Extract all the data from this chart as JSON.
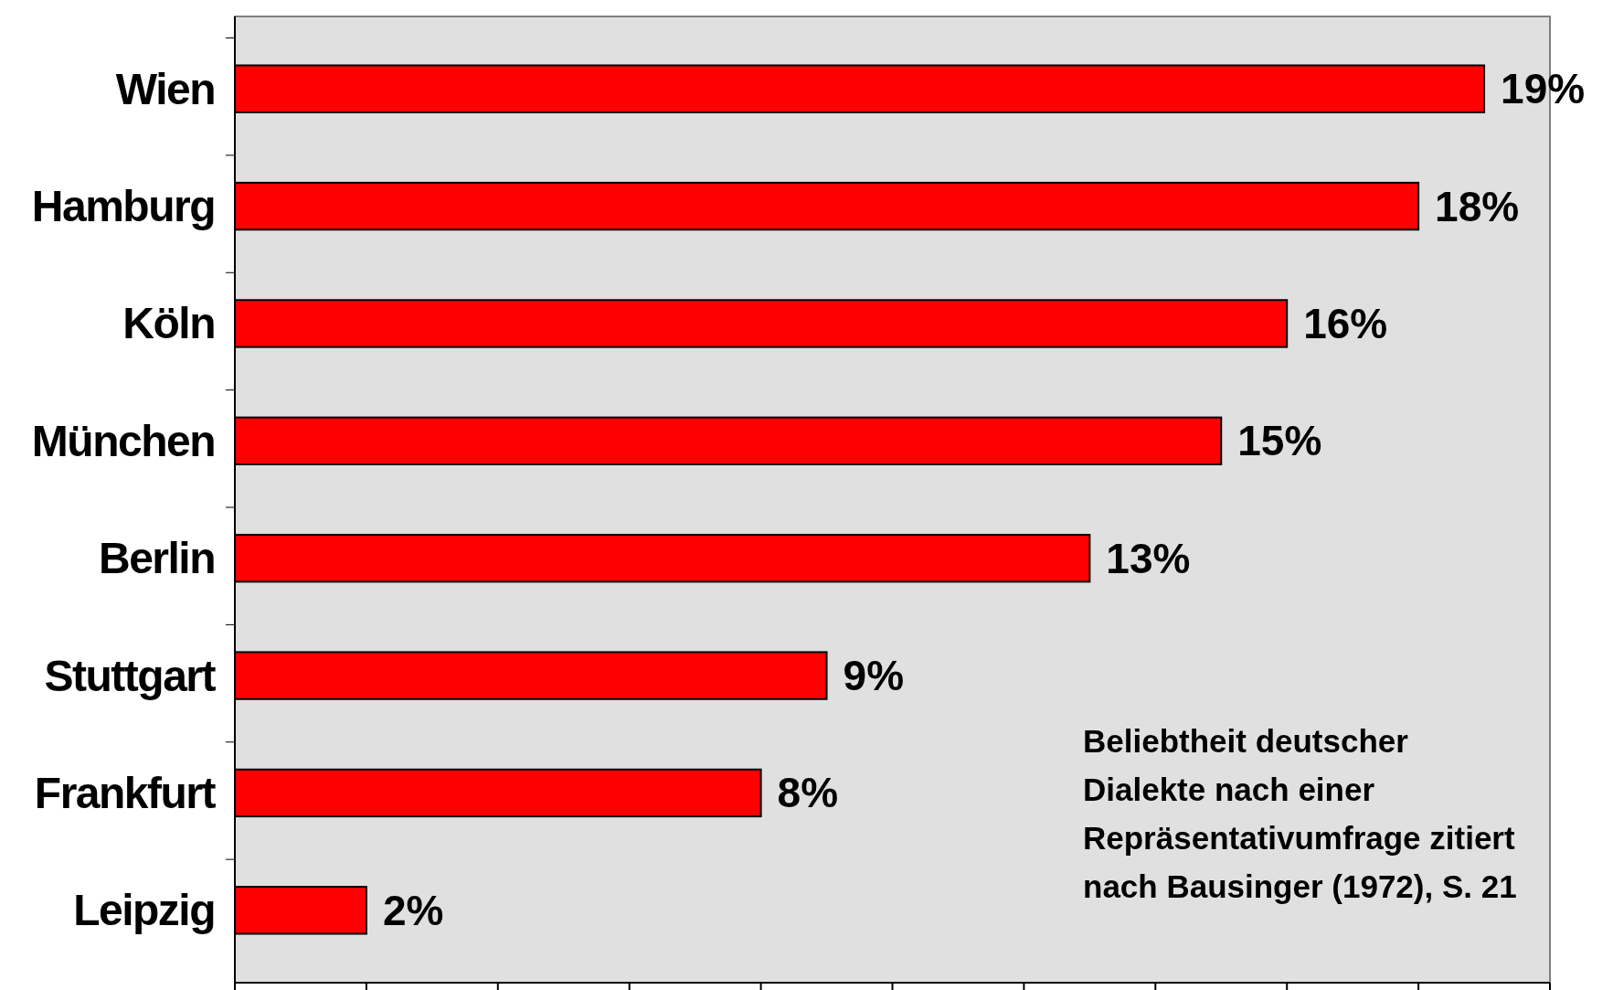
{
  "chart_data": {
    "type": "bar",
    "orientation": "horizontal",
    "categories": [
      "Wien",
      "Hamburg",
      "Köln",
      "München",
      "Berlin",
      "Stuttgart",
      "Frankfurt",
      "Leipzig"
    ],
    "values": [
      19,
      18,
      16,
      15,
      13,
      9,
      8,
      2
    ],
    "value_labels": [
      "19%",
      "18%",
      "16%",
      "15%",
      "13%",
      "9%",
      "8%",
      "2%"
    ],
    "color": "#ff0000",
    "xlim": [
      0,
      20
    ],
    "xticks": [
      {
        "value": 0,
        "label": null
      },
      {
        "value": 2,
        "label": null
      },
      {
        "value": 4,
        "label": null
      },
      {
        "value": 6,
        "label": null
      },
      {
        "value": 8,
        "label": null
      },
      {
        "value": 10,
        "label": null
      },
      {
        "value": 12,
        "label": null
      },
      {
        "value": 14,
        "label": null
      },
      {
        "value": 16,
        "label": null
      },
      {
        "value": 18,
        "label": null
      },
      {
        "value": 20,
        "label": null
      }
    ],
    "tick_labels": "y",
    "grid": false,
    "annotations": [
      "Beliebtheit deutscher Dialekte nach einer Repräsentativumfrage zitiert nach Bausinger (1972), S. 21"
    ]
  }
}
